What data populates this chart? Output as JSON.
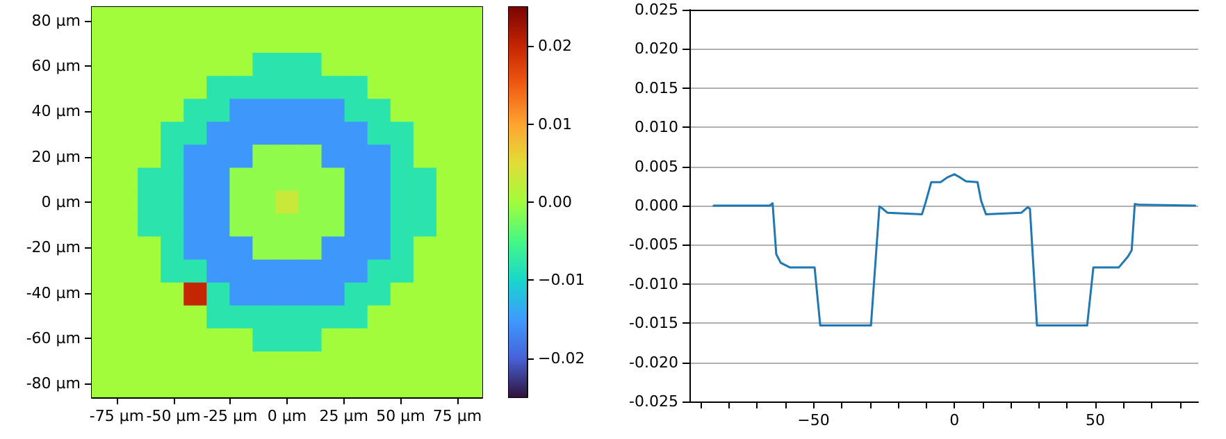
{
  "chart_data": [
    {
      "type": "heatmap",
      "cells": [
        [
          0,
          0,
          0,
          0,
          0,
          0,
          0,
          0,
          0,
          0,
          0,
          0,
          0,
          0,
          0,
          0,
          0
        ],
        [
          0,
          0,
          0,
          0,
          0,
          0,
          0,
          0,
          0,
          0,
          0,
          0,
          0,
          0,
          0,
          0,
          0
        ],
        [
          0,
          0,
          0,
          0,
          0,
          0,
          0,
          -0.0079,
          -0.0079,
          -0.0079,
          0,
          0,
          0,
          0,
          0,
          0,
          0
        ],
        [
          0,
          0,
          0,
          0,
          0,
          -0.0079,
          -0.0079,
          -0.0079,
          -0.0079,
          -0.0079,
          -0.0079,
          -0.0079,
          0,
          0,
          0,
          0,
          0
        ],
        [
          0,
          0,
          0,
          0,
          -0.0079,
          -0.0079,
          -0.0153,
          -0.0153,
          -0.0153,
          -0.0153,
          -0.0153,
          -0.0079,
          -0.0079,
          0,
          0,
          0,
          0
        ],
        [
          0,
          0,
          0,
          -0.0079,
          -0.0079,
          -0.0153,
          -0.0153,
          -0.0153,
          -0.0153,
          -0.0153,
          -0.0153,
          -0.0153,
          -0.0079,
          -0.0079,
          0,
          0,
          0
        ],
        [
          0,
          0,
          0,
          -0.0079,
          -0.0153,
          -0.0153,
          -0.0153,
          -0.001,
          -0.001,
          -0.001,
          -0.0153,
          -0.0153,
          -0.0153,
          -0.0079,
          0,
          0,
          0
        ],
        [
          0,
          0,
          -0.0079,
          -0.0079,
          -0.0153,
          -0.0153,
          -0.001,
          -0.001,
          -0.001,
          -0.001,
          -0.001,
          -0.0153,
          -0.0153,
          -0.0079,
          -0.0079,
          0,
          0
        ],
        [
          0,
          0,
          -0.0079,
          -0.0079,
          -0.0153,
          -0.0153,
          -0.001,
          -0.001,
          0.003,
          -0.001,
          -0.001,
          -0.0153,
          -0.0153,
          -0.0079,
          -0.0079,
          0,
          0
        ],
        [
          0,
          0,
          -0.0079,
          -0.0079,
          -0.0153,
          -0.0153,
          -0.001,
          -0.001,
          -0.001,
          -0.001,
          -0.001,
          -0.0153,
          -0.0153,
          -0.0079,
          -0.0079,
          0,
          0
        ],
        [
          0,
          0,
          0,
          -0.0079,
          -0.0153,
          -0.0153,
          -0.0153,
          -0.001,
          -0.001,
          -0.001,
          -0.0153,
          -0.0153,
          -0.0153,
          -0.0079,
          0,
          0,
          0
        ],
        [
          0,
          0,
          0,
          -0.0079,
          -0.0079,
          -0.0153,
          -0.0153,
          -0.0153,
          -0.0153,
          -0.0153,
          -0.0153,
          -0.0153,
          -0.0079,
          -0.0079,
          0,
          0,
          0
        ],
        [
          0,
          0,
          0,
          0,
          0.02,
          -0.0079,
          -0.0153,
          -0.0153,
          -0.0153,
          -0.0153,
          -0.0153,
          -0.0079,
          -0.0079,
          0,
          0,
          0,
          0
        ],
        [
          0,
          0,
          0,
          0,
          0,
          -0.0079,
          -0.0079,
          -0.0079,
          -0.0079,
          -0.0079,
          -0.0079,
          -0.0079,
          0,
          0,
          0,
          0,
          0
        ],
        [
          0,
          0,
          0,
          0,
          0,
          0,
          0,
          -0.0079,
          -0.0079,
          -0.0079,
          0,
          0,
          0,
          0,
          0,
          0,
          0
        ],
        [
          0,
          0,
          0,
          0,
          0,
          0,
          0,
          0,
          0,
          0,
          0,
          0,
          0,
          0,
          0,
          0,
          0
        ],
        [
          0,
          0,
          0,
          0,
          0,
          0,
          0,
          0,
          0,
          0,
          0,
          0,
          0,
          0,
          0,
          0,
          0
        ]
      ],
      "xlim": [
        -86,
        86
      ],
      "xticks": [
        {
          "value": -75,
          "label": "-75 µm"
        },
        {
          "value": -50,
          "label": "-50 µm"
        },
        {
          "value": -25,
          "label": "-25 µm"
        },
        {
          "value": 0,
          "label": "0 µm"
        },
        {
          "value": 25,
          "label": "25 µm"
        },
        {
          "value": 50,
          "label": "50 µm"
        },
        {
          "value": 75,
          "label": "75 µm"
        }
      ],
      "ylim": [
        -86,
        86
      ],
      "yticks": [
        {
          "value": -80,
          "label": "-80 µm"
        },
        {
          "value": -60,
          "label": "-60 µm"
        },
        {
          "value": -40,
          "label": "-40 µm"
        },
        {
          "value": -20,
          "label": "-20 µm"
        },
        {
          "value": 0,
          "label": "0 µm"
        },
        {
          "value": 20,
          "label": "20 µm"
        },
        {
          "value": 40,
          "label": "40 µm"
        },
        {
          "value": 60,
          "label": "60 µm"
        },
        {
          "value": 80,
          "label": "80 µm"
        }
      ],
      "clim": [
        -0.025,
        0.025
      ],
      "cticks": [
        {
          "value": -0.02,
          "label": "−0.02"
        },
        {
          "value": -0.01,
          "label": "−0.01"
        },
        {
          "value": 0,
          "label": "0.00"
        },
        0.01,
        0.02
      ]
    },
    {
      "type": "line",
      "marker": "none",
      "grid": "y",
      "x": [
        -85.4,
        -65.5,
        -64.5,
        -63.2,
        -61.6,
        -58.3,
        -49.6,
        -47.6,
        -29.6,
        -26.6,
        -25.8,
        -23.8,
        -11.5,
        -10.3,
        -8.2,
        -4.9,
        -2.5,
        0,
        2,
        4.1,
        8.2,
        9.5,
        11.2,
        23.8,
        26,
        26.8,
        29.3,
        47.1,
        49.3,
        58.3,
        61.6,
        62.9,
        64,
        65.7,
        85.4
      ],
      "series": [
        {
          "color": "#1f77b4",
          "values": [
            0,
            0,
            0.0003,
            -0.0062,
            -0.0073,
            -0.0079,
            -0.0079,
            -0.0153,
            -0.0153,
            -0.0001,
            -0.0003,
            -0.0009,
            -0.0011,
            0.0003,
            0.003,
            0.003,
            0.0036,
            0.004,
            0.0036,
            0.0031,
            0.003,
            0.0006,
            -0.0011,
            -0.0009,
            -0.0002,
            -0.0004,
            -0.0153,
            -0.0153,
            -0.0079,
            -0.0079,
            -0.0065,
            -0.0057,
            0.0002,
            0.0001,
            0
          ]
        }
      ],
      "xlim": [
        -94,
        86.5
      ],
      "xticks": [
        {
          "value": -90,
          "label": null
        },
        {
          "value": -80,
          "label": null
        },
        {
          "value": -70,
          "label": null
        },
        {
          "value": -60,
          "label": null
        },
        {
          "value": -50,
          "label": "−50"
        },
        {
          "value": -40,
          "label": null
        },
        {
          "value": -30,
          "label": null
        },
        {
          "value": -20,
          "label": null
        },
        {
          "value": -10,
          "label": null
        },
        0,
        {
          "value": 10,
          "label": null
        },
        {
          "value": 20,
          "label": null
        },
        {
          "value": 30,
          "label": null
        },
        {
          "value": 40,
          "label": null
        },
        50,
        {
          "value": 60,
          "label": null
        },
        {
          "value": 70,
          "label": null
        },
        {
          "value": 80,
          "label": null
        }
      ],
      "ylim": [
        -0.025,
        0.025
      ],
      "yticks": [
        {
          "value": -0.025,
          "label": "-0.025"
        },
        {
          "value": -0.02,
          "label": "-0.020"
        },
        {
          "value": -0.015,
          "label": "-0.015"
        },
        {
          "value": -0.01,
          "label": "-0.010"
        },
        {
          "value": -0.005,
          "label": "-0.005"
        },
        {
          "value": 0,
          "label": "0.000"
        },
        0.005,
        {
          "value": 0.01,
          "label": "0.010"
        },
        0.015,
        {
          "value": 0.02,
          "label": "0.020"
        },
        0.025
      ]
    }
  ]
}
